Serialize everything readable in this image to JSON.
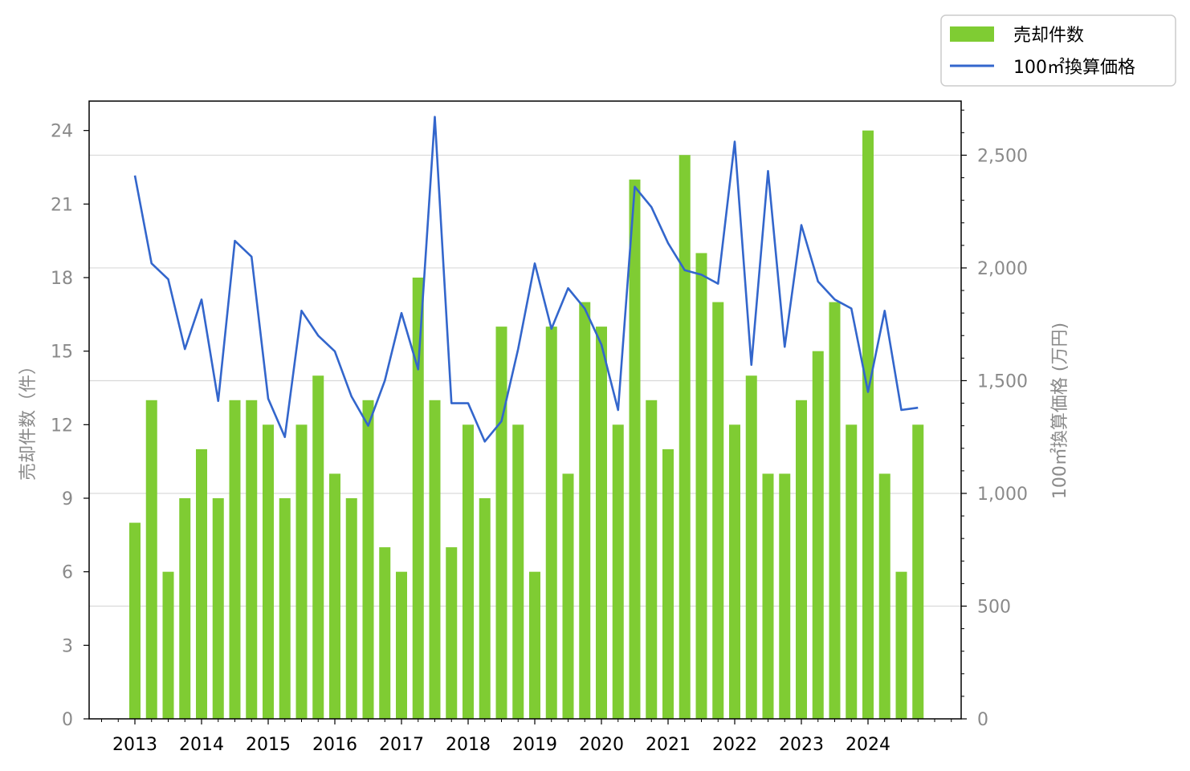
{
  "chart_data": {
    "type": "bar",
    "x_tick_labels": [
      "2013",
      "2014",
      "2015",
      "2016",
      "2017",
      "2018",
      "2019",
      "2020",
      "2021",
      "2022",
      "2023",
      "2024"
    ],
    "categories": [
      "2013Q1",
      "2013Q2",
      "2013Q3",
      "2013Q4",
      "2014Q1",
      "2014Q2",
      "2014Q3",
      "2014Q4",
      "2015Q1",
      "2015Q2",
      "2015Q3",
      "2015Q4",
      "2016Q1",
      "2016Q2",
      "2016Q3",
      "2016Q4",
      "2017Q1",
      "2017Q2",
      "2017Q3",
      "2017Q4",
      "2018Q1",
      "2018Q2",
      "2018Q3",
      "2018Q4",
      "2019Q1",
      "2019Q2",
      "2019Q3",
      "2019Q4",
      "2020Q1",
      "2020Q2",
      "2020Q3",
      "2020Q4",
      "2021Q1",
      "2021Q2",
      "2021Q3",
      "2021Q4",
      "2022Q1",
      "2022Q2",
      "2022Q3",
      "2022Q4",
      "2023Q1",
      "2023Q2",
      "2023Q3",
      "2023Q4",
      "2024Q1",
      "2024Q2",
      "2024Q3",
      "2024Q4"
    ],
    "series": [
      {
        "name": "売却件数",
        "type": "bar",
        "axis": "left",
        "color": "#7fcc33",
        "values": [
          8,
          13,
          6,
          9,
          11,
          9,
          13,
          13,
          12,
          9,
          12,
          14,
          10,
          9,
          13,
          7,
          6,
          18,
          13,
          7,
          12,
          9,
          16,
          12,
          6,
          16,
          10,
          17,
          16,
          12,
          22,
          13,
          11,
          23,
          19,
          17,
          12,
          14,
          10,
          10,
          13,
          15,
          17,
          12,
          24,
          10,
          6,
          12
        ]
      },
      {
        "name": "100㎡換算価格",
        "type": "line",
        "axis": "right",
        "color": "#3366cc",
        "values": [
          2410,
          2020,
          1950,
          1640,
          1860,
          1410,
          2120,
          2050,
          1420,
          1250,
          1810,
          1700,
          1630,
          1430,
          1300,
          1500,
          1800,
          1550,
          2670,
          1400,
          1400,
          1230,
          1320,
          1640,
          2020,
          1730,
          1910,
          1820,
          1660,
          1370,
          2360,
          2270,
          2110,
          1990,
          1970,
          1930,
          2560,
          1570,
          2430,
          1650,
          2190,
          1940,
          1860,
          1820,
          1450,
          1810,
          1370,
          1380
        ]
      }
    ],
    "ylabel": "売却件数（件）",
    "y2label": "100㎡換算価格 (万円)",
    "ylim": [
      0,
      25.2
    ],
    "y_ticks": [
      "0",
      "3",
      "6",
      "9",
      "12",
      "15",
      "18",
      "21",
      "24"
    ],
    "y2lim": [
      0,
      2740
    ],
    "y2_ticks": [
      "0",
      "500",
      "1,000",
      "1,500",
      "2,000",
      "2,500"
    ],
    "grid": "horizontal, right axis",
    "legend": {
      "placement": "top-right, outside",
      "entries": [
        "売却件数",
        "100㎡換算価格"
      ]
    }
  }
}
